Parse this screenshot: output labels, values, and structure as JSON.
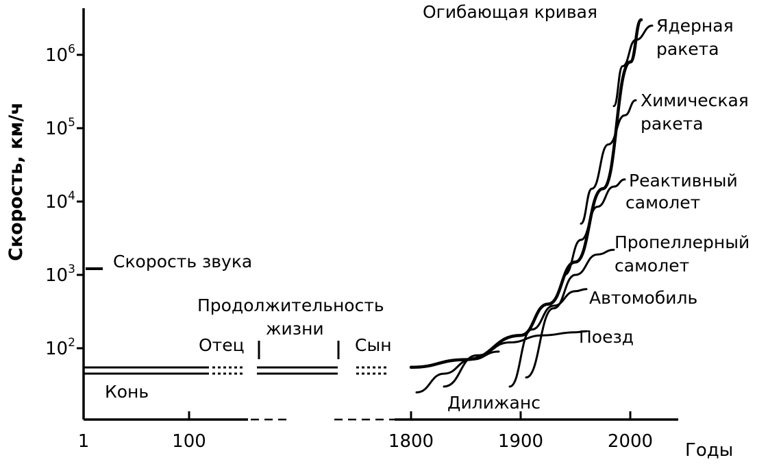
{
  "chart_data": {
    "type": "line",
    "title": "",
    "xlabel": "Годы",
    "ylabel": "Скорость, км/ч",
    "y_scale": "log",
    "grid": false,
    "legend": "none",
    "xticks": [
      "1",
      "100",
      "1800",
      "1900",
      "2000"
    ],
    "yticks": [
      {
        "base": "10",
        "exp": "2",
        "value": 100
      },
      {
        "base": "10",
        "exp": "3",
        "value": 1000
      },
      {
        "base": "10",
        "exp": "4",
        "value": 10000
      },
      {
        "base": "10",
        "exp": "5",
        "value": 100000
      },
      {
        "base": "10",
        "exp": "6",
        "value": 1000000
      }
    ],
    "sound_speed": {
      "label": "Скорость звука",
      "value": 1200
    },
    "lifespan": {
      "label_line1": "Продолжительность",
      "label_line2": "жизни",
      "father": "Отец",
      "son": "Сын"
    },
    "series": [
      {
        "name": "Конь",
        "x": [
          1,
          100,
          1800,
          1850
        ],
        "y": [
          45,
          45,
          45,
          40
        ]
      },
      {
        "name": "Дилижанс",
        "x": [
          1805,
          1830,
          1855,
          1880
        ],
        "y": [
          25,
          45,
          70,
          90
        ]
      },
      {
        "name": "Поезд",
        "x": [
          1830,
          1860,
          1890,
          1920,
          1950,
          1960
        ],
        "y": [
          30,
          80,
          120,
          150,
          165,
          170
        ]
      },
      {
        "name": "Автомобиль",
        "x": [
          1890,
          1910,
          1930,
          1950,
          1960
        ],
        "y": [
          30,
          180,
          380,
          600,
          640
        ]
      },
      {
        "name": "Пропеллерный самолет",
        "x": [
          1905,
          1930,
          1950,
          1970,
          1985
        ],
        "y": [
          40,
          350,
          1000,
          1900,
          2200
        ]
      },
      {
        "name": "Реактивный самолет",
        "x": [
          1940,
          1955,
          1970,
          1985,
          1995
        ],
        "y": [
          1000,
          3000,
          8500,
          16000,
          20000
        ]
      },
      {
        "name": "Химическая ракета",
        "x": [
          1955,
          1965,
          1980,
          1995,
          2005
        ],
        "y": [
          5000,
          15000,
          60000,
          150000,
          240000
        ]
      },
      {
        "name": "Ядерная ракета",
        "x": [
          1985,
          1993,
          2005,
          2020
        ],
        "y": [
          200000,
          700000,
          1600000,
          2500000
        ]
      },
      {
        "name": "Огибающая кривая",
        "x": [
          1800,
          1850,
          1900,
          1925,
          1950,
          1975,
          2000,
          2010
        ],
        "y": [
          55,
          70,
          150,
          400,
          1500,
          15000,
          800000,
          3000000
        ]
      }
    ]
  }
}
